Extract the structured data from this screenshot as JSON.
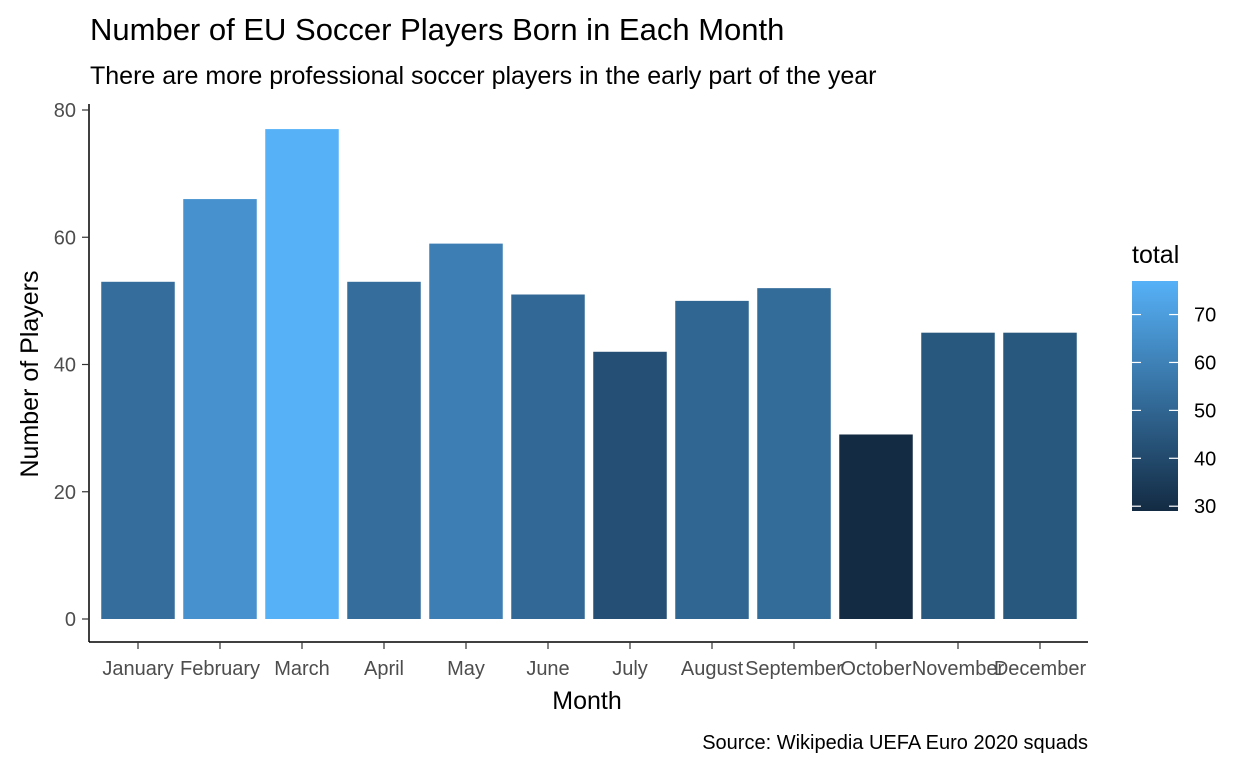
{
  "chart_data": {
    "type": "bar",
    "title": "Number of EU Soccer Players Born in Each Month",
    "subtitle": "There are more professional soccer players in the early part of the year",
    "xlabel": "Month",
    "ylabel": "Number of Players",
    "caption": "Source: Wikipedia UEFA Euro 2020 squads",
    "categories": [
      "January",
      "February",
      "March",
      "April",
      "May",
      "June",
      "July",
      "August",
      "September",
      "October",
      "November",
      "December"
    ],
    "values": [
      53,
      66,
      77,
      53,
      59,
      51,
      42,
      50,
      52,
      29,
      45,
      45
    ],
    "ylim": [
      0,
      80
    ],
    "yticks": [
      "0",
      "20",
      "40",
      "60",
      "80"
    ],
    "grid": false,
    "legend": {
      "title": "total",
      "position": "right",
      "ticks": [
        "30",
        "40",
        "50",
        "60",
        "70"
      ],
      "low_color": "#132B43",
      "high_color": "#56B1F7",
      "range": [
        29,
        77
      ]
    }
  }
}
